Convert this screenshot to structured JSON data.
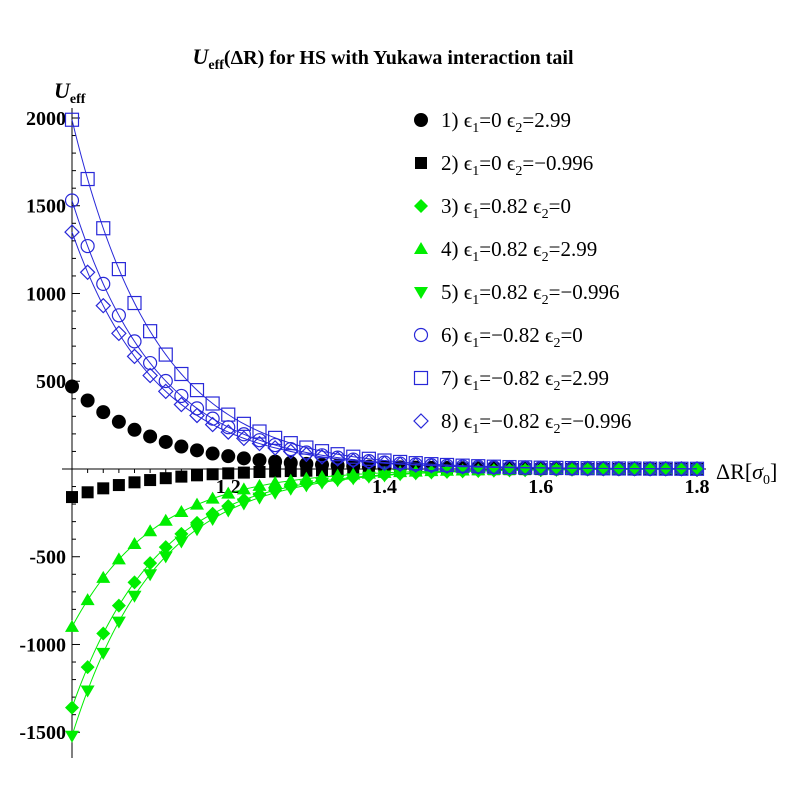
{
  "chart_data": {
    "type": "scatter",
    "title": {
      "sym": "U",
      "sub": "eff",
      "rest": "(ΔR) for HS with Yukawa interaction tail"
    },
    "ylabel": {
      "sym": "U",
      "sub": "eff"
    },
    "xlabel": {
      "main": "ΔR[",
      "sym": "σ",
      "sub": "0",
      "end": "]"
    },
    "xlim": [
      1.0,
      1.8
    ],
    "ylim": [
      -1550,
      2000
    ],
    "x_ticks": [
      "1.2",
      "1.4",
      "1.6",
      "1.8"
    ],
    "x_tick_values": [
      1.2,
      1.4,
      1.6,
      1.8
    ],
    "y_ticks": [
      "2000",
      "1500",
      "1000",
      "500",
      "-500",
      "-1000",
      "-1500"
    ],
    "y_tick_values": [
      2000,
      1500,
      1000,
      500,
      -500,
      -1000,
      -1500
    ],
    "x_start": 1.0,
    "x_step": 0.02,
    "n_points": 41,
    "decay_rate": 9.3,
    "series": [
      {
        "id": 1,
        "label": "1) ϵ1=0   ϵ2=2.99",
        "parts": [
          "1) ",
          "ϵ",
          "1",
          "=0   ",
          "ϵ",
          "2",
          "=2.99"
        ],
        "marker": "circle-filled",
        "color": "#000000",
        "amplitude": 470,
        "line": false
      },
      {
        "id": 2,
        "label": "2) ϵ1=0   ϵ2=−0.996",
        "parts": [
          "2) ",
          "ϵ",
          "1",
          "=0   ",
          "ϵ",
          "2",
          "=−0.996"
        ],
        "marker": "square-filled",
        "color": "#000000",
        "amplitude": -160,
        "line": false
      },
      {
        "id": 3,
        "label": "3) ϵ1=0.82   ϵ2=0",
        "parts": [
          "3) ",
          "ϵ",
          "1",
          "=0.82   ",
          "ϵ",
          "2",
          "=0"
        ],
        "marker": "diamond-filled",
        "color": "#00ee00",
        "amplitude": -1360,
        "line": true
      },
      {
        "id": 4,
        "label": "4) ϵ1=0.82   ϵ2=2.99",
        "parts": [
          "4) ",
          "ϵ",
          "1",
          "=0.82   ",
          "ϵ",
          "2",
          "=2.99"
        ],
        "marker": "triangle-up-filled",
        "color": "#00ee00",
        "amplitude": -900,
        "line": true
      },
      {
        "id": 5,
        "label": "5) ϵ1=0.82   ϵ2=−0.996",
        "parts": [
          "5) ",
          "ϵ",
          "1",
          "=0.82   ",
          "ϵ",
          "2",
          "=−0.996"
        ],
        "marker": "triangle-down-filled",
        "color": "#00ee00",
        "amplitude": -1520,
        "line": true
      },
      {
        "id": 6,
        "label": "6) ϵ1=−0.82   ϵ2=0",
        "parts": [
          "6) ",
          "ϵ",
          "1",
          "=−0.82   ",
          "ϵ",
          "2",
          "=0"
        ],
        "marker": "circle-open",
        "color": "#2828d8",
        "amplitude": 1530,
        "line": true
      },
      {
        "id": 7,
        "label": "7) ϵ1=−0.82   ϵ2=2.99",
        "parts": [
          "7) ",
          "ϵ",
          "1",
          "=−0.82   ",
          "ϵ",
          "2",
          "=2.99"
        ],
        "marker": "square-open",
        "color": "#2828d8",
        "amplitude": 1990,
        "line": true
      },
      {
        "id": 8,
        "label": "8) ϵ1=−0.82   ϵ2=−0.996",
        "parts": [
          "8) ",
          "ϵ",
          "1",
          "=−0.82   ",
          "ϵ",
          "2",
          "=−0.996"
        ],
        "marker": "diamond-open",
        "color": "#2828d8",
        "amplitude": 1350,
        "line": true
      }
    ]
  }
}
